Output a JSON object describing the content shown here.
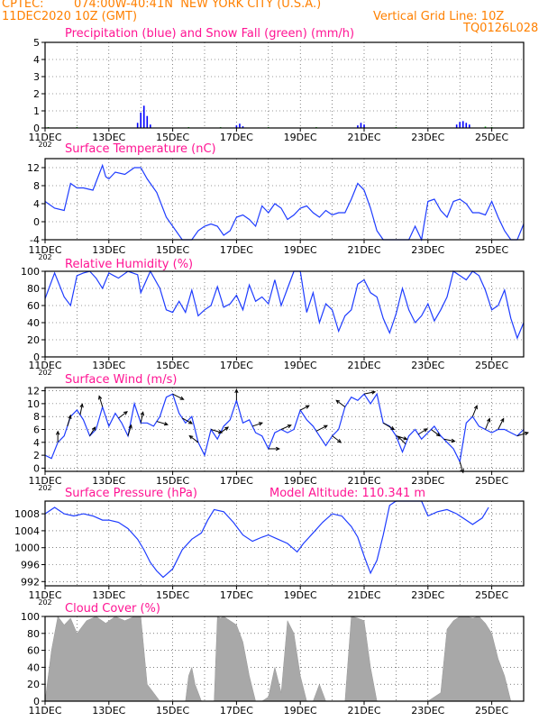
{
  "header": {
    "source": "CPTEC:",
    "location": "074:00W-40:41N  NEW YORK CITY (U.S.A.)",
    "run": "11DEC2020 10Z (GMT)",
    "grid_note": "Vertical Grid Line: 10Z",
    "code": "TQ0126L028"
  },
  "colors": {
    "header": "#ff8000",
    "title": "#ff1493",
    "line": "#1e3cff",
    "precip": "#0000ff",
    "snow": "#00b000",
    "cloud": "#a8a8a8"
  },
  "x_axis": {
    "tick_labels": [
      "11DEC",
      "13DEC",
      "15DEC",
      "17DEC",
      "19DEC",
      "21DEC",
      "23DEC",
      "25DEC"
    ],
    "stub": "202"
  },
  "chart_data": [
    {
      "type": "bar",
      "title": "Precipitation (blue) and Snow Fall (green) (mm/h)",
      "ylim": [
        0,
        5
      ],
      "yticks": [
        0,
        1,
        2,
        3,
        4,
        5
      ],
      "grid": true,
      "series": [
        {
          "name": "Precipitation",
          "points": [
            [
              13.9,
              0.3
            ],
            [
              14.0,
              0.9
            ],
            [
              14.1,
              1.3
            ],
            [
              14.2,
              0.7
            ],
            [
              14.3,
              0.2
            ],
            [
              17.0,
              0.15
            ],
            [
              17.1,
              0.25
            ],
            [
              17.2,
              0.1
            ],
            [
              20.8,
              0.15
            ],
            [
              20.9,
              0.3
            ],
            [
              21.0,
              0.2
            ],
            [
              23.9,
              0.2
            ],
            [
              24.0,
              0.35
            ],
            [
              24.1,
              0.4
            ],
            [
              24.2,
              0.3
            ],
            [
              24.3,
              0.2
            ]
          ]
        },
        {
          "name": "Snow Fall",
          "points": [
            [
              11.1,
              0.05
            ],
            [
              12.0,
              0.05
            ],
            [
              15.5,
              0.05
            ],
            [
              16.5,
              0.05
            ],
            [
              18.0,
              0.05
            ],
            [
              19.5,
              0.05
            ],
            [
              22.0,
              0.05
            ],
            [
              24.8,
              0.08
            ],
            [
              25.0,
              0.05
            ]
          ]
        }
      ]
    },
    {
      "type": "line",
      "title": "Surface Temperature (nC)",
      "ylim": [
        -4,
        14
      ],
      "yticks": [
        -4,
        0,
        4,
        8,
        12
      ],
      "grid": true,
      "x": [
        11.0,
        11.3,
        11.6,
        11.8,
        12.0,
        12.2,
        12.5,
        12.8,
        12.9,
        13.0,
        13.2,
        13.5,
        13.8,
        14.0,
        14.2,
        14.5,
        14.8,
        15.0,
        15.3,
        15.6,
        15.8,
        16.0,
        16.2,
        16.4,
        16.6,
        16.8,
        17.0,
        17.2,
        17.4,
        17.6,
        17.8,
        18.0,
        18.2,
        18.4,
        18.6,
        18.8,
        19.0,
        19.2,
        19.4,
        19.6,
        19.8,
        20.0,
        20.2,
        20.4,
        20.6,
        20.8,
        21.0,
        21.2,
        21.4,
        21.6,
        21.8,
        22.0,
        22.2,
        22.4,
        22.6,
        22.8,
        23.0,
        23.2,
        23.4,
        23.6,
        23.8,
        24.0,
        24.2,
        24.4,
        24.6,
        24.8,
        25.0,
        25.2,
        25.4,
        25.6,
        25.8,
        26.0
      ],
      "series": [
        {
          "values": [
            4.5,
            3.0,
            2.5,
            8.5,
            7.5,
            7.5,
            7.0,
            12.5,
            10.0,
            9.5,
            11.0,
            10.5,
            12.0,
            12.0,
            9.5,
            6.5,
            1.0,
            -1.0,
            -4.0,
            -4.0,
            -2.0,
            -1.0,
            -0.5,
            -1.0,
            -3.0,
            -2.0,
            1.0,
            1.5,
            0.5,
            -1.0,
            3.5,
            2.0,
            4.0,
            3.0,
            0.5,
            1.5,
            3.0,
            3.5,
            2.0,
            1.0,
            2.5,
            1.5,
            2.0,
            2.0,
            5.0,
            8.5,
            7.0,
            3.0,
            -2.0,
            -4.0,
            -4.0,
            -4.0,
            -4.0,
            -4.0,
            -1.0,
            -4.0,
            4.5,
            5.0,
            2.5,
            1.0,
            4.5,
            5.0,
            4.0,
            2.0,
            2.0,
            1.5,
            4.5,
            1.0,
            -2.0,
            -4.0,
            -4.0,
            -0.5
          ]
        }
      ]
    },
    {
      "type": "line",
      "title": "Relative Humidity (%)",
      "ylim": [
        0,
        100
      ],
      "yticks": [
        0,
        20,
        40,
        60,
        80,
        100
      ],
      "grid": true,
      "x": [
        11.0,
        11.3,
        11.6,
        11.8,
        12.0,
        12.2,
        12.4,
        12.6,
        12.8,
        13.0,
        13.3,
        13.6,
        13.9,
        14.0,
        14.3,
        14.6,
        14.8,
        15.0,
        15.2,
        15.4,
        15.6,
        15.8,
        16.0,
        16.2,
        16.4,
        16.6,
        16.8,
        17.0,
        17.2,
        17.4,
        17.6,
        17.8,
        18.0,
        18.2,
        18.4,
        18.6,
        18.8,
        19.0,
        19.2,
        19.4,
        19.6,
        19.8,
        20.0,
        20.2,
        20.4,
        20.6,
        20.8,
        21.0,
        21.2,
        21.4,
        21.6,
        21.8,
        22.0,
        22.2,
        22.4,
        22.6,
        22.8,
        23.0,
        23.2,
        23.4,
        23.6,
        23.8,
        24.0,
        24.2,
        24.4,
        24.6,
        24.8,
        25.0,
        25.2,
        25.4,
        25.6,
        25.8,
        26.0
      ],
      "series": [
        {
          "values": [
            68,
            98,
            70,
            60,
            95,
            98,
            100,
            92,
            80,
            98,
            92,
            100,
            96,
            75,
            100,
            80,
            55,
            52,
            65,
            52,
            78,
            48,
            55,
            60,
            82,
            58,
            62,
            72,
            55,
            84,
            65,
            70,
            62,
            90,
            60,
            80,
            100,
            100,
            52,
            75,
            40,
            62,
            55,
            30,
            48,
            55,
            85,
            90,
            75,
            70,
            45,
            28,
            50,
            80,
            55,
            40,
            48,
            62,
            42,
            55,
            70,
            100,
            95,
            90,
            100,
            95,
            78,
            55,
            60,
            78,
            45,
            22,
            40
          ]
        }
      ]
    },
    {
      "type": "line",
      "title": "Surface Wind (m/s)",
      "ylim": [
        -0.5,
        12.5
      ],
      "yticks": [
        0,
        2,
        4,
        6,
        8,
        10,
        12
      ],
      "grid": true,
      "x": [
        11.0,
        11.2,
        11.4,
        11.6,
        11.8,
        12.0,
        12.2,
        12.4,
        12.6,
        12.8,
        13.0,
        13.2,
        13.4,
        13.6,
        13.8,
        14.0,
        14.2,
        14.4,
        14.6,
        14.8,
        15.0,
        15.2,
        15.4,
        15.6,
        15.8,
        16.0,
        16.2,
        16.4,
        16.6,
        16.8,
        17.0,
        17.2,
        17.4,
        17.6,
        17.8,
        18.0,
        18.2,
        18.4,
        18.6,
        18.8,
        19.0,
        19.2,
        19.4,
        19.6,
        19.8,
        20.0,
        20.2,
        20.4,
        20.6,
        20.8,
        21.0,
        21.2,
        21.4,
        21.6,
        21.8,
        22.0,
        22.2,
        22.4,
        22.6,
        22.8,
        23.0,
        23.2,
        23.4,
        23.6,
        23.8,
        24.0,
        24.2,
        24.4,
        24.6,
        24.8,
        25.0,
        25.2,
        25.4,
        25.6,
        25.8,
        26.0
      ],
      "series": [
        {
          "values": [
            2.0,
            1.5,
            4.0,
            5.0,
            8.0,
            9.0,
            7.5,
            5.0,
            6.0,
            9.5,
            6.5,
            8.5,
            7.0,
            5.0,
            10.0,
            7.0,
            7.0,
            6.5,
            8.0,
            11.0,
            11.5,
            8.5,
            7.0,
            8.0,
            4.0,
            2.0,
            6.0,
            4.5,
            6.5,
            7.5,
            10.5,
            7.0,
            7.5,
            5.5,
            5.0,
            3.0,
            5.5,
            6.0,
            5.5,
            6.0,
            9.0,
            7.5,
            6.5,
            5.0,
            3.5,
            5.0,
            6.0,
            9.5,
            11.0,
            10.5,
            11.5,
            10.0,
            11.5,
            7.0,
            6.5,
            5.0,
            2.5,
            5.0,
            6.0,
            4.5,
            5.5,
            6.5,
            5.0,
            4.0,
            3.0,
            1.0,
            7.0,
            8.0,
            6.5,
            6.0,
            5.5,
            6.0,
            6.0,
            5.5,
            5.0,
            6.0
          ]
        }
      ]
    },
    {
      "type": "line",
      "title": "Surface Pressure (hPa)",
      "subtitle": "Model Altitude: 110.341  m",
      "ylim": [
        991,
        1011
      ],
      "yticks": [
        992,
        996,
        1000,
        1004,
        1008
      ],
      "grid": true,
      "x": [
        11.0,
        11.3,
        11.6,
        11.9,
        12.2,
        12.5,
        12.8,
        13.0,
        13.3,
        13.6,
        13.9,
        14.1,
        14.3,
        14.5,
        14.7,
        15.0,
        15.3,
        15.6,
        15.9,
        16.1,
        16.3,
        16.6,
        16.9,
        17.2,
        17.5,
        17.8,
        18.0,
        18.3,
        18.6,
        18.9,
        19.1,
        19.4,
        19.7,
        20.0,
        20.3,
        20.6,
        20.8,
        21.0,
        21.2,
        21.4,
        21.6,
        21.8,
        22.0,
        22.2,
        22.5,
        22.8,
        23.0,
        23.3,
        23.6,
        23.9,
        24.1,
        24.4,
        24.7,
        24.9
      ],
      "series": [
        {
          "values": [
            1008,
            1009.5,
            1008.0,
            1007.5,
            1008.0,
            1007.5,
            1006.5,
            1006.5,
            1006.0,
            1004.5,
            1002.0,
            999.5,
            996.5,
            994.5,
            993.0,
            995.0,
            999.5,
            1002.0,
            1003.5,
            1006.5,
            1009.0,
            1008.5,
            1006.0,
            1003.0,
            1001.5,
            1002.5,
            1003.0,
            1002.0,
            1001.0,
            999.0,
            1001.0,
            1003.5,
            1006.0,
            1008.0,
            1007.5,
            1005.0,
            1002.5,
            998.0,
            994.0,
            997.0,
            1003.0,
            1010.0,
            1011.0,
            1011.0,
            1011.0,
            1011.0,
            1007.5,
            1008.5,
            1009.0,
            1008.0,
            1007.0,
            1005.5,
            1007.0,
            1009.5
          ]
        }
      ]
    },
    {
      "type": "area",
      "title": "Cloud Cover (%)",
      "ylim": [
        0,
        100
      ],
      "yticks": [
        0,
        20,
        40,
        60,
        80,
        100
      ],
      "grid": true,
      "x": [
        11.0,
        11.2,
        11.4,
        11.6,
        11.8,
        12.0,
        12.3,
        12.6,
        12.9,
        13.2,
        13.5,
        13.8,
        14.0,
        14.2,
        14.4,
        14.6,
        14.8,
        15.0,
        15.2,
        15.4,
        15.5,
        15.6,
        15.7,
        15.9,
        16.1,
        16.3,
        16.4,
        16.5,
        16.6,
        16.8,
        17.0,
        17.2,
        17.4,
        17.6,
        17.8,
        18.0,
        18.2,
        18.4,
        18.6,
        18.8,
        19.0,
        19.2,
        19.4,
        19.6,
        19.8,
        20.0,
        20.2,
        20.4,
        20.6,
        20.8,
        21.0,
        21.2,
        21.4,
        21.6,
        21.8,
        22.0,
        22.2,
        22.4,
        22.6,
        22.8,
        23.0,
        23.2,
        23.4,
        23.6,
        23.8,
        24.0,
        24.2,
        24.4,
        24.6,
        24.8,
        25.0,
        25.2,
        25.4,
        25.6,
        25.8,
        26.0
      ],
      "series": [
        {
          "name": "",
          "values": [
            0,
            60,
            100,
            90,
            98,
            80,
            95,
            100,
            92,
            100,
            95,
            100,
            100,
            20,
            10,
            0,
            0,
            0,
            0,
            0,
            30,
            40,
            20,
            0,
            0,
            0,
            100,
            98,
            100,
            95,
            90,
            70,
            30,
            0,
            0,
            5,
            40,
            10,
            95,
            80,
            30,
            0,
            0,
            20,
            0,
            0,
            0,
            0,
            100,
            98,
            95,
            40,
            0,
            0,
            0,
            0,
            0,
            0,
            0,
            0,
            0,
            5,
            10,
            85,
            95,
            100,
            100,
            98,
            100,
            92,
            80,
            50,
            30,
            0,
            0,
            0
          ]
        }
      ]
    }
  ],
  "wind_arrows": [
    {
      "x": 11.4,
      "u": 0,
      "v": 1
    },
    {
      "x": 11.7,
      "u": 0.3,
      "v": 1
    },
    {
      "x": 12.1,
      "u": 0.2,
      "v": 1
    },
    {
      "x": 12.4,
      "u": 0.5,
      "v": 0.8
    },
    {
      "x": 12.8,
      "u": -0.3,
      "v": 1
    },
    {
      "x": 13.3,
      "u": 0.8,
      "v": 0.6
    },
    {
      "x": 13.6,
      "u": 0.3,
      "v": 1
    },
    {
      "x": 14.0,
      "u": 0.2,
      "v": 1
    },
    {
      "x": 14.5,
      "u": 1,
      "v": -0.3
    },
    {
      "x": 15.0,
      "u": 1,
      "v": -0.5
    },
    {
      "x": 15.3,
      "u": 0.9,
      "v": -0.5
    },
    {
      "x": 15.8,
      "u": -0.8,
      "v": 0.6
    },
    {
      "x": 16.2,
      "u": 1,
      "v": -0.3
    },
    {
      "x": 16.5,
      "u": 0.7,
      "v": 0.5
    },
    {
      "x": 17.0,
      "u": 0,
      "v": 1
    },
    {
      "x": 17.5,
      "u": 0.9,
      "v": 0.3
    },
    {
      "x": 18.0,
      "u": 1,
      "v": 0
    },
    {
      "x": 18.4,
      "u": 0.9,
      "v": 0.4
    },
    {
      "x": 19.0,
      "u": 0.8,
      "v": 0.4
    },
    {
      "x": 19.5,
      "u": 1,
      "v": 0.5
    },
    {
      "x": 20.0,
      "u": 0.8,
      "v": -0.6
    },
    {
      "x": 20.4,
      "u": -0.8,
      "v": 0.6
    },
    {
      "x": 21.0,
      "u": 1,
      "v": 0.2
    },
    {
      "x": 21.6,
      "u": 1,
      "v": -0.6
    },
    {
      "x": 22.0,
      "u": 1,
      "v": -0.3
    },
    {
      "x": 22.3,
      "u": -0.7,
      "v": 0.7
    },
    {
      "x": 22.7,
      "u": 0.8,
      "v": 0.5
    },
    {
      "x": 23.1,
      "u": 0.8,
      "v": -0.6
    },
    {
      "x": 23.5,
      "u": 1,
      "v": -0.2
    },
    {
      "x": 24.0,
      "u": 0.3,
      "v": -1
    },
    {
      "x": 24.4,
      "u": 0.4,
      "v": 1
    },
    {
      "x": 24.8,
      "u": 0.4,
      "v": 1
    },
    {
      "x": 25.2,
      "u": 0.5,
      "v": 1
    },
    {
      "x": 25.8,
      "u": 1,
      "v": 0.3
    }
  ]
}
